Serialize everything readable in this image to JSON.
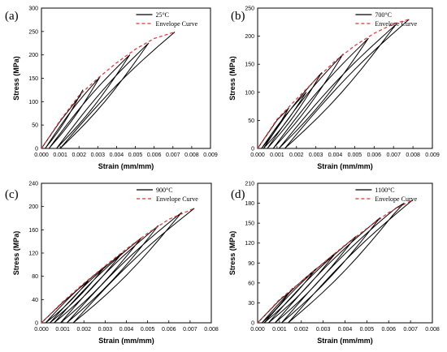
{
  "chart_data": [
    {
      "type": "line",
      "panel_label": "(a)",
      "xlabel": "Strain (mm/mm)",
      "ylabel": "Stress (MPa)",
      "xlim": [
        0,
        0.009
      ],
      "ylim": [
        0,
        300
      ],
      "xticks": [
        0.0,
        0.001,
        0.002,
        0.003,
        0.004,
        0.005,
        0.006,
        0.007,
        0.008,
        0.009
      ],
      "xtick_labels": [
        "0.000",
        "0.001",
        "0.002",
        "0.003",
        "0.004",
        "0.005",
        "0.006",
        "0.007",
        "0.008",
        "0.009"
      ],
      "yticks": [
        0,
        50,
        100,
        150,
        200,
        250,
        300
      ],
      "ytick_labels": [
        "0",
        "50",
        "100",
        "150",
        "200",
        "250",
        "300"
      ],
      "legend": [
        "25°C",
        "Envelope Curve"
      ],
      "legend_position": "top-right",
      "grid": false,
      "series": [
        {
          "name": "25°C",
          "style": "solid",
          "color": "#000000",
          "peaks": [
            [
              0.0022,
              125
            ],
            [
              0.0031,
              152
            ],
            [
              0.0047,
              200
            ],
            [
              0.0057,
              225
            ],
            [
              0.0071,
              249
            ]
          ],
          "residual_strains": [
            0.0002,
            0.0004,
            0.0008,
            0.001
          ]
        },
        {
          "name": "Envelope Curve",
          "style": "dashed",
          "color": "#e03030",
          "x": [
            0,
            0.001,
            0.002,
            0.003,
            0.004,
            0.005,
            0.006,
            0.0071
          ],
          "y": [
            0,
            60,
            113,
            150,
            183,
            212,
            235,
            249
          ]
        }
      ]
    },
    {
      "type": "line",
      "panel_label": "(b)",
      "xlabel": "Strain (mm/mm)",
      "ylabel": "Stress (MPa)",
      "xlim": [
        0,
        0.009
      ],
      "ylim": [
        0,
        250
      ],
      "xticks": [
        0.0,
        0.001,
        0.002,
        0.003,
        0.004,
        0.005,
        0.006,
        0.007,
        0.008,
        0.009
      ],
      "xtick_labels": [
        "0.000",
        "0.001",
        "0.002",
        "0.003",
        "0.004",
        "0.005",
        "0.006",
        "0.007",
        "0.008",
        "0.009"
      ],
      "yticks": [
        0,
        50,
        100,
        150,
        200,
        250
      ],
      "ytick_labels": [
        "0",
        "50",
        "100",
        "150",
        "200",
        "250"
      ],
      "legend": [
        "700°C",
        "Envelope Curve"
      ],
      "legend_position": "top-right",
      "grid": false,
      "series": [
        {
          "name": "700°C",
          "style": "solid",
          "color": "#000000",
          "peaks": [
            [
              0.0016,
              72
            ],
            [
              0.0025,
              100
            ],
            [
              0.0033,
              135
            ],
            [
              0.0044,
              168
            ],
            [
              0.0057,
              196
            ],
            [
              0.0071,
              220
            ],
            [
              0.0078,
              230
            ]
          ],
          "residual_strains": [
            0.0002,
            0.0003,
            0.0005,
            0.0008,
            0.0011,
            0.0014
          ]
        },
        {
          "name": "Envelope Curve",
          "style": "dashed",
          "color": "#e03030",
          "x": [
            0,
            0.001,
            0.002,
            0.003,
            0.004,
            0.005,
            0.006,
            0.007,
            0.0078
          ],
          "y": [
            0,
            52,
            88,
            123,
            156,
            183,
            205,
            222,
            230
          ]
        }
      ]
    },
    {
      "type": "line",
      "panel_label": "(c)",
      "xlabel": "Strain (mm/mm)",
      "ylabel": "Stress (MPa)",
      "xlim": [
        0,
        0.008
      ],
      "ylim": [
        0,
        240
      ],
      "xticks": [
        0.0,
        0.001,
        0.002,
        0.003,
        0.004,
        0.005,
        0.006,
        0.007,
        0.008
      ],
      "xtick_labels": [
        "0.000",
        "0.001",
        "0.002",
        "0.003",
        "0.004",
        "0.005",
        "0.006",
        "0.007",
        "0.008"
      ],
      "yticks": [
        0,
        40,
        80,
        120,
        160,
        200,
        240
      ],
      "ytick_labels": [
        "0",
        "40",
        "80",
        "120",
        "160",
        "200",
        "240"
      ],
      "legend": [
        "900°C",
        "Envelope Curve"
      ],
      "legend_position": "top-right",
      "grid": false,
      "series": [
        {
          "name": "900°C",
          "style": "solid",
          "color": "#000000",
          "peaks": [
            [
              0.0022,
              72
            ],
            [
              0.003,
              97
            ],
            [
              0.0038,
              120
            ],
            [
              0.0047,
              146
            ],
            [
              0.0055,
              167
            ],
            [
              0.0066,
              190
            ],
            [
              0.0072,
              197
            ]
          ],
          "residual_strains": [
            0.0002,
            0.0004,
            0.0006,
            0.0009,
            0.0012,
            0.0015
          ]
        },
        {
          "name": "Envelope Curve",
          "style": "dashed",
          "color": "#e03030",
          "x": [
            0,
            0.001,
            0.002,
            0.003,
            0.004,
            0.005,
            0.006,
            0.0072
          ],
          "y": [
            0,
            36,
            68,
            98,
            127,
            154,
            178,
            197
          ]
        }
      ]
    },
    {
      "type": "line",
      "panel_label": "(d)",
      "xlabel": "Strain (mm/mm)",
      "ylabel": "Stress (MPa)",
      "xlim": [
        0,
        0.008
      ],
      "ylim": [
        0,
        210
      ],
      "xticks": [
        0.0,
        0.001,
        0.002,
        0.003,
        0.004,
        0.005,
        0.006,
        0.007,
        0.008
      ],
      "xtick_labels": [
        "0.000",
        "0.001",
        "0.002",
        "0.003",
        "0.004",
        "0.005",
        "0.006",
        "0.007",
        "0.008"
      ],
      "yticks": [
        0,
        30,
        60,
        90,
        120,
        150,
        180,
        210
      ],
      "ytick_labels": [
        "0",
        "30",
        "60",
        "90",
        "120",
        "150",
        "180",
        "210"
      ],
      "legend": [
        "1100°C",
        "Envelope Curve"
      ],
      "legend_position": "top-right",
      "grid": false,
      "series": [
        {
          "name": "1100°C",
          "style": "solid",
          "color": "#000000",
          "peaks": [
            [
              0.0016,
              52
            ],
            [
              0.0027,
              82
            ],
            [
              0.0036,
              106
            ],
            [
              0.0045,
              130
            ],
            [
              0.0056,
              158
            ],
            [
              0.0067,
              183
            ],
            [
              0.0071,
              185
            ]
          ],
          "residual_strains": [
            0.0002,
            0.0003,
            0.0005,
            0.0008,
            0.0011,
            0.0014
          ]
        },
        {
          "name": "Envelope Curve",
          "style": "dashed",
          "color": "#e03030",
          "x": [
            0,
            0.001,
            0.002,
            0.003,
            0.004,
            0.005,
            0.006,
            0.0071
          ],
          "y": [
            0,
            35,
            62,
            90,
            117,
            142,
            166,
            185
          ]
        }
      ]
    }
  ]
}
